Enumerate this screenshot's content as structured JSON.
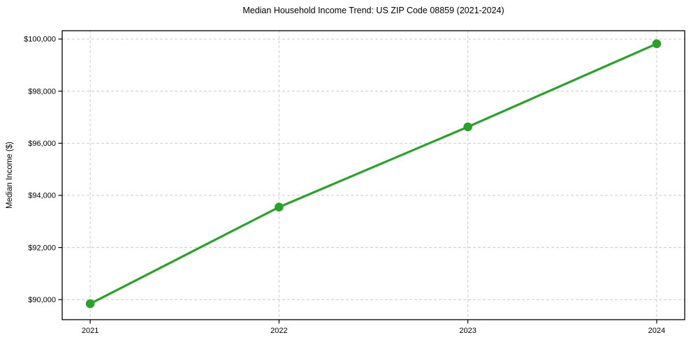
{
  "chart_data": {
    "type": "line",
    "title": "Median Household Income Trend: US ZIP Code 08859 (2021-2024)",
    "xlabel": "",
    "ylabel": "Median Income ($)",
    "categories": [
      "2021",
      "2022",
      "2023",
      "2024"
    ],
    "series": [
      {
        "name": "Median Household Income",
        "values": [
          89840,
          93550,
          96630,
          99820
        ],
        "color": "#2ca02c",
        "marker": "circle"
      }
    ],
    "y_ticks": [
      90000,
      92000,
      94000,
      96000,
      98000,
      100000
    ],
    "y_tick_labels": [
      "$90,000",
      "$92,000",
      "$94,000",
      "$96,000",
      "$98,000",
      "$100,000"
    ],
    "ylim": [
      89230,
      100320
    ],
    "grid": true,
    "grid_style": "dashed",
    "legend_position": "none",
    "styles": {
      "line_color": "#2ca02c",
      "marker_color": "#2ca02c",
      "grid_color": "#cccccc",
      "axis_color": "#000000",
      "tick_label_color": "#000000",
      "background": "#ffffff"
    }
  }
}
